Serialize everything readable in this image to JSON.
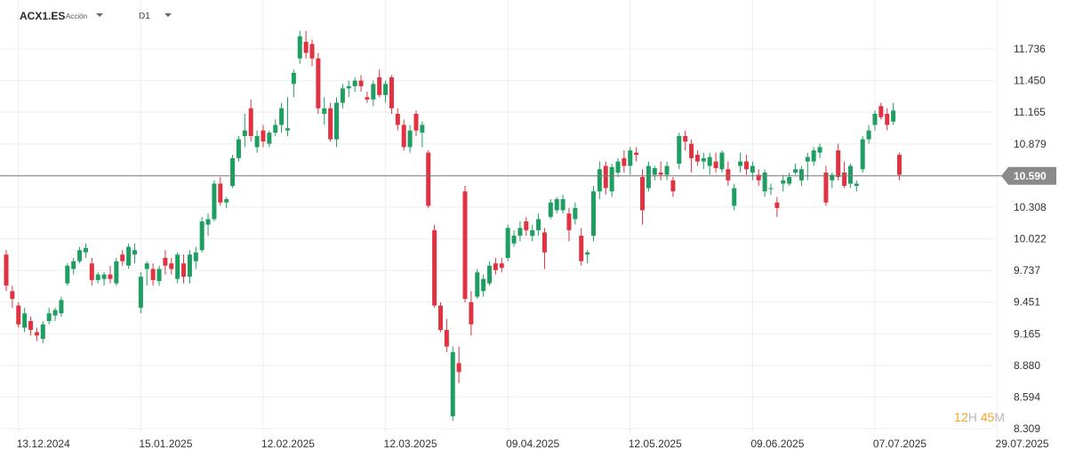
{
  "header": {
    "symbol": "ACX1.ES",
    "instrument_type": "Acción",
    "timeframe": "D1"
  },
  "countdown": {
    "hours": "12",
    "hours_unit": "H",
    "minutes": "45",
    "minutes_unit": "M",
    "color": "#f5a623"
  },
  "colors": {
    "up": "#1e9e61",
    "down": "#e03241",
    "grid": "#eeeeee",
    "current_line": "#777777",
    "current_label_bg": "#8a8a8a"
  },
  "chart_data": {
    "type": "candlestick",
    "current_price": 10.59,
    "current_price_label": "10.590",
    "y_ticks": [
      "11.736",
      "11.450",
      "11.165",
      "10.879",
      "10.308",
      "10.022",
      "9.737",
      "9.451",
      "9.165",
      "8.880",
      "8.594",
      "8.309"
    ],
    "x_ticks": [
      "13.12.2024",
      "15.01.2025",
      "12.02.2025",
      "12.03.2025",
      "09.04.2025",
      "12.05.2025",
      "09.06.2025",
      "07.07.2025",
      "29.07.2025"
    ],
    "x_tick_index": [
      2,
      22,
      42,
      62,
      82,
      102,
      122,
      142,
      162
    ],
    "candles": [
      [
        9.88,
        9.92,
        9.55,
        9.6
      ],
      [
        9.55,
        9.6,
        9.4,
        9.48
      ],
      [
        9.42,
        9.45,
        9.22,
        9.25
      ],
      [
        9.22,
        9.4,
        9.18,
        9.35
      ],
      [
        9.28,
        9.32,
        9.15,
        9.2
      ],
      [
        9.18,
        9.22,
        9.1,
        9.15
      ],
      [
        9.12,
        9.28,
        9.08,
        9.25
      ],
      [
        9.28,
        9.4,
        9.25,
        9.35
      ],
      [
        9.33,
        9.4,
        9.28,
        9.38
      ],
      [
        9.35,
        9.5,
        9.32,
        9.47
      ],
      [
        9.62,
        9.8,
        9.6,
        9.78
      ],
      [
        9.75,
        9.85,
        9.7,
        9.82
      ],
      [
        9.82,
        9.95,
        9.8,
        9.92
      ],
      [
        9.9,
        9.98,
        9.85,
        9.94
      ],
      [
        9.8,
        9.85,
        9.6,
        9.65
      ],
      [
        9.65,
        9.72,
        9.62,
        9.7
      ],
      [
        9.66,
        9.72,
        9.6,
        9.7
      ],
      [
        9.7,
        9.78,
        9.62,
        9.66
      ],
      [
        9.62,
        9.85,
        9.6,
        9.82
      ],
      [
        9.88,
        9.92,
        9.78,
        9.82
      ],
      [
        9.78,
        9.98,
        9.75,
        9.95
      ],
      [
        9.88,
        9.98,
        9.8,
        9.92
      ],
      [
        9.4,
        9.72,
        9.35,
        9.68
      ],
      [
        9.75,
        9.82,
        9.6,
        9.8
      ],
      [
        9.75,
        9.8,
        9.6,
        9.65
      ],
      [
        9.64,
        9.78,
        9.6,
        9.75
      ],
      [
        9.85,
        9.92,
        9.7,
        9.78
      ],
      [
        9.8,
        9.85,
        9.7,
        9.75
      ],
      [
        9.66,
        9.9,
        9.62,
        9.88
      ],
      [
        9.8,
        9.88,
        9.62,
        9.68
      ],
      [
        9.68,
        9.92,
        9.62,
        9.88
      ],
      [
        9.82,
        9.95,
        9.75,
        9.9
      ],
      [
        9.92,
        10.22,
        9.9,
        10.18
      ],
      [
        10.15,
        10.25,
        10.05,
        10.2
      ],
      [
        10.2,
        10.55,
        10.18,
        10.52
      ],
      [
        10.52,
        10.58,
        10.32,
        10.35
      ],
      [
        10.35,
        10.4,
        10.3,
        10.38
      ],
      [
        10.5,
        10.78,
        10.48,
        10.75
      ],
      [
        10.75,
        10.95,
        10.72,
        10.92
      ],
      [
        10.95,
        11.15,
        10.85,
        11.0
      ],
      [
        11.2,
        11.28,
        10.9,
        10.95
      ],
      [
        10.85,
        11.0,
        10.8,
        10.95
      ],
      [
        11.0,
        11.05,
        10.85,
        10.9
      ],
      [
        10.88,
        11.0,
        10.85,
        10.98
      ],
      [
        10.98,
        11.1,
        10.95,
        11.05
      ],
      [
        11.05,
        11.25,
        10.98,
        11.2
      ],
      [
        11.0,
        11.3,
        10.95,
        11.02
      ],
      [
        11.42,
        11.55,
        11.3,
        11.52
      ],
      [
        11.65,
        11.9,
        11.6,
        11.85
      ],
      [
        11.8,
        11.9,
        11.65,
        11.7
      ],
      [
        11.78,
        11.82,
        11.58,
        11.65
      ],
      [
        11.65,
        11.7,
        11.15,
        11.2
      ],
      [
        11.15,
        11.3,
        11.05,
        11.2
      ],
      [
        11.2,
        11.25,
        10.9,
        10.92
      ],
      [
        10.92,
        11.3,
        10.85,
        11.25
      ],
      [
        11.25,
        11.42,
        11.2,
        11.38
      ],
      [
        11.38,
        11.45,
        11.3,
        11.4
      ],
      [
        11.4,
        11.48,
        11.35,
        11.45
      ],
      [
        11.45,
        11.5,
        11.35,
        11.4
      ],
      [
        11.3,
        11.35,
        11.25,
        11.28
      ],
      [
        11.28,
        11.45,
        11.22,
        11.42
      ],
      [
        11.48,
        11.55,
        11.3,
        11.32
      ],
      [
        11.32,
        11.45,
        11.25,
        11.42
      ],
      [
        11.48,
        11.5,
        11.15,
        11.2
      ],
      [
        11.15,
        11.2,
        11.0,
        11.05
      ],
      [
        11.05,
        11.1,
        10.82,
        10.85
      ],
      [
        10.85,
        11.05,
        10.8,
        11.0
      ],
      [
        11.15,
        11.18,
        10.95,
        11.0
      ],
      [
        10.98,
        11.08,
        10.85,
        11.05
      ],
      [
        10.8,
        10.82,
        10.3,
        10.32
      ],
      [
        10.1,
        10.15,
        9.4,
        9.42
      ],
      [
        9.42,
        9.45,
        9.18,
        9.2
      ],
      [
        9.2,
        9.3,
        9.0,
        9.05
      ],
      [
        8.42,
        9.05,
        8.38,
        9.0
      ],
      [
        8.9,
        9.05,
        8.72,
        8.82
      ],
      [
        10.45,
        10.5,
        9.45,
        9.48
      ],
      [
        9.45,
        9.55,
        9.15,
        9.25
      ],
      [
        9.5,
        9.75,
        9.48,
        9.72
      ],
      [
        9.55,
        9.7,
        9.5,
        9.66
      ],
      [
        9.62,
        9.82,
        9.6,
        9.78
      ],
      [
        9.8,
        9.85,
        9.7,
        9.74
      ],
      [
        9.8,
        9.85,
        9.72,
        9.76
      ],
      [
        9.85,
        10.15,
        9.82,
        10.12
      ],
      [
        9.98,
        10.1,
        9.95,
        10.05
      ],
      [
        10.05,
        10.18,
        10.0,
        10.12
      ],
      [
        10.18,
        10.22,
        10.05,
        10.1
      ],
      [
        10.05,
        10.15,
        10.0,
        10.1
      ],
      [
        10.1,
        10.25,
        10.05,
        10.2
      ],
      [
        10.08,
        10.12,
        9.75,
        9.9
      ],
      [
        10.22,
        10.38,
        10.2,
        10.35
      ],
      [
        10.28,
        10.4,
        10.25,
        10.38
      ],
      [
        10.28,
        10.42,
        10.25,
        10.38
      ],
      [
        10.25,
        10.3,
        10.0,
        10.1
      ],
      [
        10.2,
        10.35,
        10.15,
        10.3
      ],
      [
        10.05,
        10.12,
        9.78,
        9.82
      ],
      [
        9.88,
        9.92,
        9.8,
        9.9
      ],
      [
        10.05,
        10.5,
        10.0,
        10.45
      ],
      [
        10.45,
        10.72,
        10.38,
        10.65
      ],
      [
        10.68,
        10.72,
        10.42,
        10.48
      ],
      [
        10.45,
        10.7,
        10.4,
        10.67
      ],
      [
        10.62,
        10.75,
        10.58,
        10.72
      ],
      [
        10.75,
        10.82,
        10.62,
        10.68
      ],
      [
        10.68,
        10.85,
        10.6,
        10.82
      ],
      [
        10.8,
        10.85,
        10.72,
        10.78
      ],
      [
        10.58,
        10.65,
        10.15,
        10.28
      ],
      [
        10.48,
        10.72,
        10.45,
        10.68
      ],
      [
        10.6,
        10.68,
        10.55,
        10.66
      ],
      [
        10.62,
        10.72,
        10.55,
        10.6
      ],
      [
        10.6,
        10.72,
        10.55,
        10.68
      ],
      [
        10.55,
        10.58,
        10.4,
        10.45
      ],
      [
        10.7,
        10.98,
        10.65,
        10.95
      ],
      [
        10.95,
        11.0,
        10.82,
        10.9
      ],
      [
        10.88,
        10.92,
        10.62,
        10.75
      ],
      [
        10.78,
        10.82,
        10.68,
        10.72
      ],
      [
        10.72,
        10.8,
        10.65,
        10.75
      ],
      [
        10.68,
        10.8,
        10.6,
        10.76
      ],
      [
        10.72,
        10.8,
        10.62,
        10.66
      ],
      [
        10.65,
        10.82,
        10.62,
        10.8
      ],
      [
        10.65,
        10.72,
        10.5,
        10.55
      ],
      [
        10.32,
        10.52,
        10.28,
        10.48
      ],
      [
        10.68,
        10.8,
        10.62,
        10.72
      ],
      [
        10.72,
        10.78,
        10.6,
        10.65
      ],
      [
        10.62,
        10.72,
        10.55,
        10.68
      ],
      [
        10.6,
        10.65,
        10.5,
        10.55
      ],
      [
        10.45,
        10.65,
        10.4,
        10.62
      ],
      [
        10.48,
        10.52,
        10.42,
        10.48
      ],
      [
        10.35,
        10.4,
        10.22,
        10.3
      ],
      [
        10.52,
        10.6,
        10.45,
        10.55
      ],
      [
        10.52,
        10.62,
        10.5,
        10.58
      ],
      [
        10.62,
        10.7,
        10.6,
        10.65
      ],
      [
        10.55,
        10.68,
        10.5,
        10.65
      ],
      [
        10.72,
        10.8,
        10.55,
        10.76
      ],
      [
        10.72,
        10.85,
        10.68,
        10.82
      ],
      [
        10.8,
        10.88,
        10.75,
        10.85
      ],
      [
        10.62,
        10.68,
        10.32,
        10.35
      ],
      [
        10.55,
        10.62,
        10.48,
        10.6
      ],
      [
        10.82,
        10.88,
        10.55,
        10.58
      ],
      [
        10.62,
        10.72,
        10.48,
        10.5
      ],
      [
        10.52,
        10.7,
        10.48,
        10.68
      ],
      [
        10.5,
        10.55,
        10.45,
        10.52
      ],
      [
        10.65,
        10.95,
        10.62,
        10.92
      ],
      [
        10.92,
        11.05,
        10.88,
        11.0
      ],
      [
        11.05,
        11.18,
        11.0,
        11.15
      ],
      [
        11.22,
        11.25,
        11.1,
        11.12
      ],
      [
        11.15,
        11.2,
        11.0,
        11.05
      ],
      [
        11.08,
        11.25,
        11.05,
        11.18
      ],
      [
        10.78,
        10.8,
        10.55,
        10.6
      ]
    ]
  }
}
